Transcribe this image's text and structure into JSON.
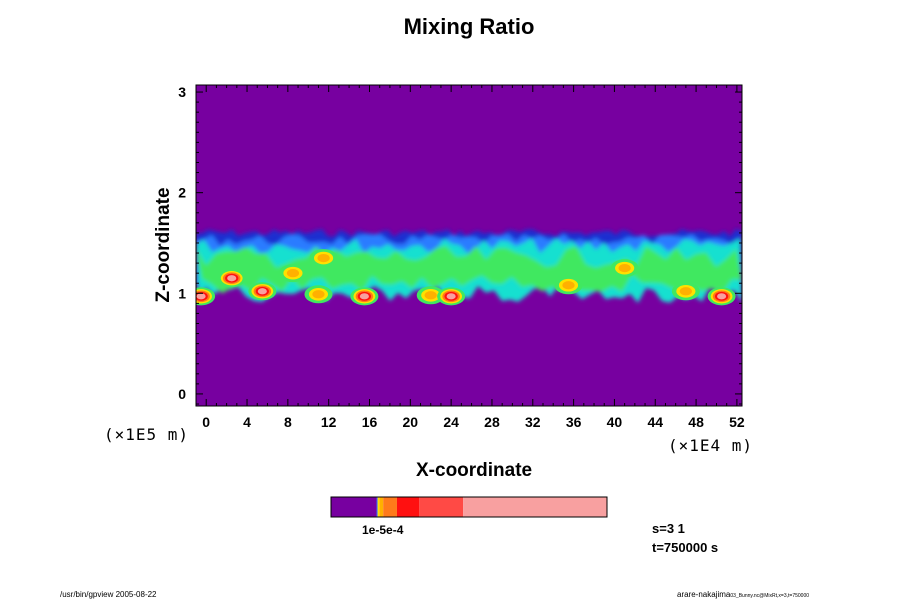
{
  "chart_data": {
    "type": "heatmap",
    "title": "Mixing Ratio",
    "xlabel": "X-coordinate",
    "ylabel": "Z-coordinate",
    "x_scale_note": "(×1E4 m)",
    "y_scale_note": "(×1E5 m)",
    "xlim": [
      -1,
      52.5
    ],
    "ylim": [
      -0.12,
      3.07
    ],
    "x_ticks": [
      0,
      4,
      8,
      12,
      16,
      20,
      24,
      28,
      32,
      36,
      40,
      44,
      48,
      52
    ],
    "y_ticks": [
      0,
      1,
      2,
      3
    ],
    "background_color": "#7700a0",
    "band": {
      "z_bottom": 0.86,
      "z_mid": 1.18,
      "z_top": 1.67
    },
    "hotspots": [
      {
        "x": -0.5,
        "z": 0.97,
        "level": 3
      },
      {
        "x": 2.5,
        "z": 1.15,
        "level": 3
      },
      {
        "x": 5.5,
        "z": 1.02,
        "level": 3
      },
      {
        "x": 8.5,
        "z": 1.2,
        "level": 2
      },
      {
        "x": 11.5,
        "z": 1.35,
        "level": 2
      },
      {
        "x": 11.0,
        "z": 0.99,
        "level": 2
      },
      {
        "x": 15.5,
        "z": 0.97,
        "level": 3
      },
      {
        "x": 22.0,
        "z": 0.98,
        "level": 2
      },
      {
        "x": 24.0,
        "z": 0.97,
        "level": 3
      },
      {
        "x": 35.5,
        "z": 1.08,
        "level": 2
      },
      {
        "x": 41.0,
        "z": 1.25,
        "level": 2
      },
      {
        "x": 47.0,
        "z": 1.02,
        "level": 2
      },
      {
        "x": 50.5,
        "z": 0.97,
        "level": 3
      }
    ],
    "colorbar": {
      "label_text": "1e-5e-4",
      "segments": [
        {
          "frac": 0.165,
          "color": "#7700a0"
        },
        {
          "frac": 0.004,
          "color": "#2a5cff"
        },
        {
          "frac": 0.006,
          "color": "#ffe000"
        },
        {
          "frac": 0.014,
          "color": "#ffb000"
        },
        {
          "frac": 0.05,
          "color": "#ff7a1a"
        },
        {
          "frac": 0.08,
          "color": "#ff1010"
        },
        {
          "frac": 0.16,
          "color": "#ff4a45"
        },
        {
          "frac": 0.521,
          "color": "#f8a0a0"
        }
      ]
    }
  },
  "annotations": {
    "s_value": "s=3 1",
    "t_value": "t=750000 s"
  },
  "footer": {
    "left": "/usr/bin/gpview 2005-08-22",
    "right": "arare-nakajima",
    "right_small": "03_Bunny.nc@MixRt,x=3,t=750000"
  }
}
